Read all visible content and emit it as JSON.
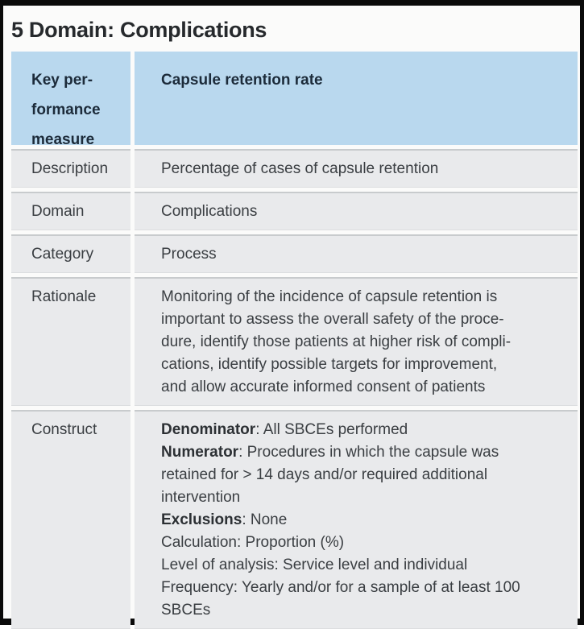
{
  "title": "5 Domain: Complications",
  "colors": {
    "frame": "#0a0a0a",
    "page_bg": "#fbfbfa",
    "header_bg": "#b9d8ee",
    "row_bg": "#e9eaec",
    "title_text": "#26292c",
    "header_text": "#1c2b3a",
    "body_text": "#3a3e42",
    "bold_text": "#2c3034"
  },
  "table": {
    "header": {
      "label": "Key per-\nformance\nmeasure",
      "value": "Capsule retention rate"
    },
    "rows": [
      {
        "label": "Description",
        "lines": [
          [
            {
              "text": "Percentage of cases of capsule retention"
            }
          ]
        ]
      },
      {
        "label": "Domain",
        "lines": [
          [
            {
              "text": "Complications"
            }
          ]
        ]
      },
      {
        "label": "Category",
        "lines": [
          [
            {
              "text": "Process"
            }
          ]
        ]
      },
      {
        "label": "Rationale",
        "lines": [
          [
            {
              "text": "Monitoring of the incidence of capsule retention is"
            }
          ],
          [
            {
              "text": "important to assess the overall safety of the proce-"
            }
          ],
          [
            {
              "text": "dure, identify those patients at higher risk of compli-"
            }
          ],
          [
            {
              "text": "cations, identify possible targets for improvement,"
            }
          ],
          [
            {
              "text": "and allow accurate informed consent of patients"
            }
          ]
        ]
      },
      {
        "label": "Construct",
        "lines": [
          [
            {
              "bold": "Denominator"
            },
            {
              "text": ": All SBCEs performed"
            }
          ],
          [
            {
              "bold": "Numerator"
            },
            {
              "text": ": Procedures in which the capsule was"
            }
          ],
          [
            {
              "text": "retained for > 14 days and/or required additional"
            }
          ],
          [
            {
              "text": "intervention"
            }
          ],
          [
            {
              "bold": "Exclusions"
            },
            {
              "text": ": None"
            }
          ],
          [
            {
              "text": "Calculation: Proportion (%)"
            }
          ],
          [
            {
              "text": "Level of analysis: Service level and individual"
            }
          ],
          [
            {
              "text": "Frequency: Yearly and/or for a sample of at least 100"
            }
          ],
          [
            {
              "text": "SBCEs"
            }
          ]
        ]
      }
    ]
  }
}
